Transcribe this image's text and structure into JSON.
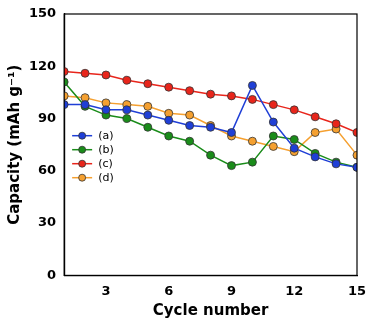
{
  "chart_data": {
    "type": "line",
    "x_label": "Cycle number",
    "y_label": "Capacity (mAh g⁻¹)",
    "x": [
      1,
      2,
      3,
      4,
      5,
      6,
      7,
      8,
      9,
      10,
      11,
      12,
      13,
      14,
      15
    ],
    "xlim": [
      1,
      15
    ],
    "xticks": [
      3,
      6,
      9,
      12,
      15
    ],
    "ylim": [
      0,
      150
    ],
    "yticks": [
      0,
      30,
      60,
      90,
      120,
      150
    ],
    "grid": false,
    "legend": "left",
    "series": [
      {
        "name": "(a)",
        "color": "#1f3fd6",
        "marker": "circle",
        "values": [
          98,
          98,
          95,
          95,
          92,
          89,
          86,
          85,
          82,
          109,
          88,
          73,
          68,
          64,
          62
        ]
      },
      {
        "name": "(b)",
        "color": "#1a8c1a",
        "marker": "circle",
        "values": [
          111,
          97,
          92,
          90,
          85,
          80,
          77,
          69,
          63,
          65,
          80,
          78,
          70,
          65,
          62
        ]
      },
      {
        "name": "(c)",
        "color": "#e8251b",
        "marker": "circle",
        "values": [
          117,
          116,
          115,
          112,
          110,
          108,
          106,
          104,
          103,
          101,
          98,
          95,
          91,
          87,
          82
        ]
      },
      {
        "name": "(d)",
        "color": "#f5a030",
        "marker": "circle",
        "values": [
          103,
          102,
          99,
          98,
          97,
          93,
          92,
          86,
          80,
          77,
          74,
          71,
          82,
          84,
          69
        ]
      }
    ]
  }
}
